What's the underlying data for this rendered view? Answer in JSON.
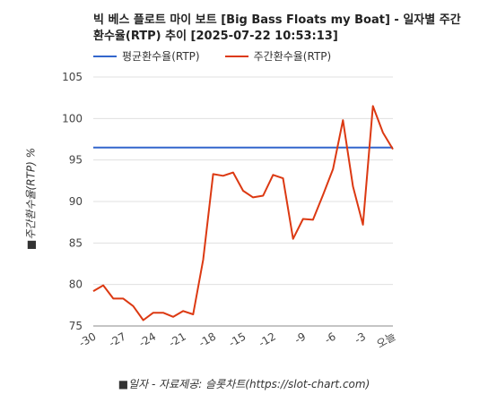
{
  "chart_data": {
    "type": "line",
    "title": "빅 베스 플로트 마이 보트 [Big Bass Floats my Boat] - 일자별 주간 환수율(RTP) 추이 [2025-07-22 10:53:13]",
    "ylabel": "■주간환수율(RTP) %",
    "xlabel": "■일자 - 자료제공: 슬롯차트(https://slot-chart.com)",
    "ylim": [
      75,
      105
    ],
    "yticks": [
      "75",
      "80",
      "85",
      "90",
      "95",
      "100",
      "105"
    ],
    "xticks": [
      "-30",
      "-27",
      "-24",
      "-21",
      "-18",
      "-15",
      "-12",
      "-9",
      "-6",
      "-3",
      "오늘"
    ],
    "x": [
      -30,
      -29,
      -28,
      -27,
      -26,
      -25,
      -24,
      -23,
      -22,
      -21,
      -20,
      -19,
      -18,
      -17,
      -16,
      -15,
      -14,
      -13,
      -12,
      -11,
      -10,
      -9,
      -8,
      -7,
      -6,
      -5,
      -4,
      -3,
      -2,
      -1,
      0
    ],
    "grid": true,
    "legend_position": "top",
    "series": [
      {
        "name": "평균환수율(RTP)",
        "color": "#3366cc",
        "values": [
          96.5,
          96.5,
          96.5,
          96.5,
          96.5,
          96.5,
          96.5,
          96.5,
          96.5,
          96.5,
          96.5,
          96.5,
          96.5,
          96.5,
          96.5,
          96.5,
          96.5,
          96.5,
          96.5,
          96.5,
          96.5,
          96.5,
          96.5,
          96.5,
          96.5,
          96.5,
          96.5,
          96.5,
          96.5,
          96.5,
          96.5
        ]
      },
      {
        "name": "주간환수율(RTP)",
        "color": "#dc3912",
        "values": [
          79.2,
          79.9,
          78.3,
          78.3,
          77.4,
          75.7,
          76.6,
          76.6,
          76.1,
          76.8,
          76.4,
          83.0,
          93.3,
          93.1,
          93.5,
          91.3,
          90.5,
          90.7,
          93.2,
          92.8,
          85.5,
          87.9,
          87.8,
          90.8,
          93.9,
          99.8,
          91.8,
          87.2,
          101.5,
          98.3,
          96.3
        ]
      }
    ]
  }
}
